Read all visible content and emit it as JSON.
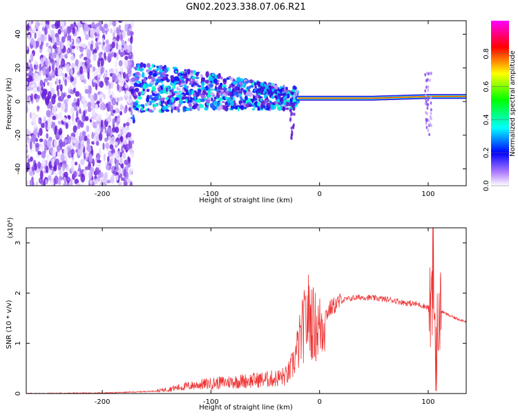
{
  "title": "GN02.2023.338.07.06.R21",
  "chart_data": [
    {
      "type": "heatmap",
      "xlabel": "Height of straight line (km)",
      "ylabel": "Frequency (Hz)",
      "xlim": [
        -270,
        135
      ],
      "ylim": [
        -50,
        48
      ],
      "x_ticks": [
        -200,
        -100,
        0,
        100
      ],
      "y_ticks": [
        -40,
        -20,
        0,
        20,
        40
      ],
      "colorbar": {
        "label": "Normalized spectral amplitude",
        "ticks": [
          0.0,
          0.2,
          0.4,
          0.6,
          0.8
        ],
        "range": [
          0,
          1
        ],
        "colormap": [
          "#ffffff",
          "#8a2be2",
          "#0000ff",
          "#00ffff",
          "#00ff00",
          "#ffff00",
          "#ff0000",
          "#ff00ff"
        ]
      },
      "ridge": [
        {
          "x": -170,
          "y": 8
        },
        {
          "x": -120,
          "y": 7
        },
        {
          "x": -80,
          "y": 5
        },
        {
          "x": -50,
          "y": 3
        },
        {
          "x": -30,
          "y": 2
        },
        {
          "x": -20,
          "y": 2
        },
        {
          "x": 0,
          "y": 2
        },
        {
          "x": 50,
          "y": 2
        },
        {
          "x": 100,
          "y": 3
        },
        {
          "x": 135,
          "y": 3
        }
      ]
    },
    {
      "type": "line",
      "xlabel": "Height of straight line (km)",
      "ylabel": "SNR (10 * v/v)",
      "y_multiplier": "(x10⁴)",
      "xlim": [
        -270,
        135
      ],
      "ylim": [
        0,
        3.3
      ],
      "x_ticks": [
        -200,
        -100,
        0,
        100
      ],
      "y_ticks": [
        0,
        1,
        2,
        3
      ],
      "grid": false,
      "color": "#ee3333",
      "series": [
        {
          "x": [
            -270,
            -200,
            -170,
            -150,
            -130,
            -110,
            -90,
            -70,
            -50,
            -40,
            -30,
            -25,
            -20,
            -15,
            -10,
            -5,
            0,
            5,
            10,
            20,
            30,
            40,
            50,
            60,
            70,
            80,
            90,
            100,
            105,
            108,
            112,
            115,
            120,
            125,
            130,
            135
          ],
          "values": [
            0.0,
            0.01,
            0.03,
            0.05,
            0.12,
            0.18,
            0.22,
            0.25,
            0.28,
            0.3,
            0.35,
            0.55,
            0.9,
            1.3,
            1.6,
            1.35,
            1.3,
            1.55,
            1.7,
            1.85,
            1.9,
            1.92,
            1.9,
            1.88,
            1.85,
            1.8,
            1.78,
            1.72,
            1.7,
            1.2,
            1.65,
            1.6,
            1.55,
            1.5,
            1.47,
            1.44
          ]
        }
      ]
    }
  ]
}
